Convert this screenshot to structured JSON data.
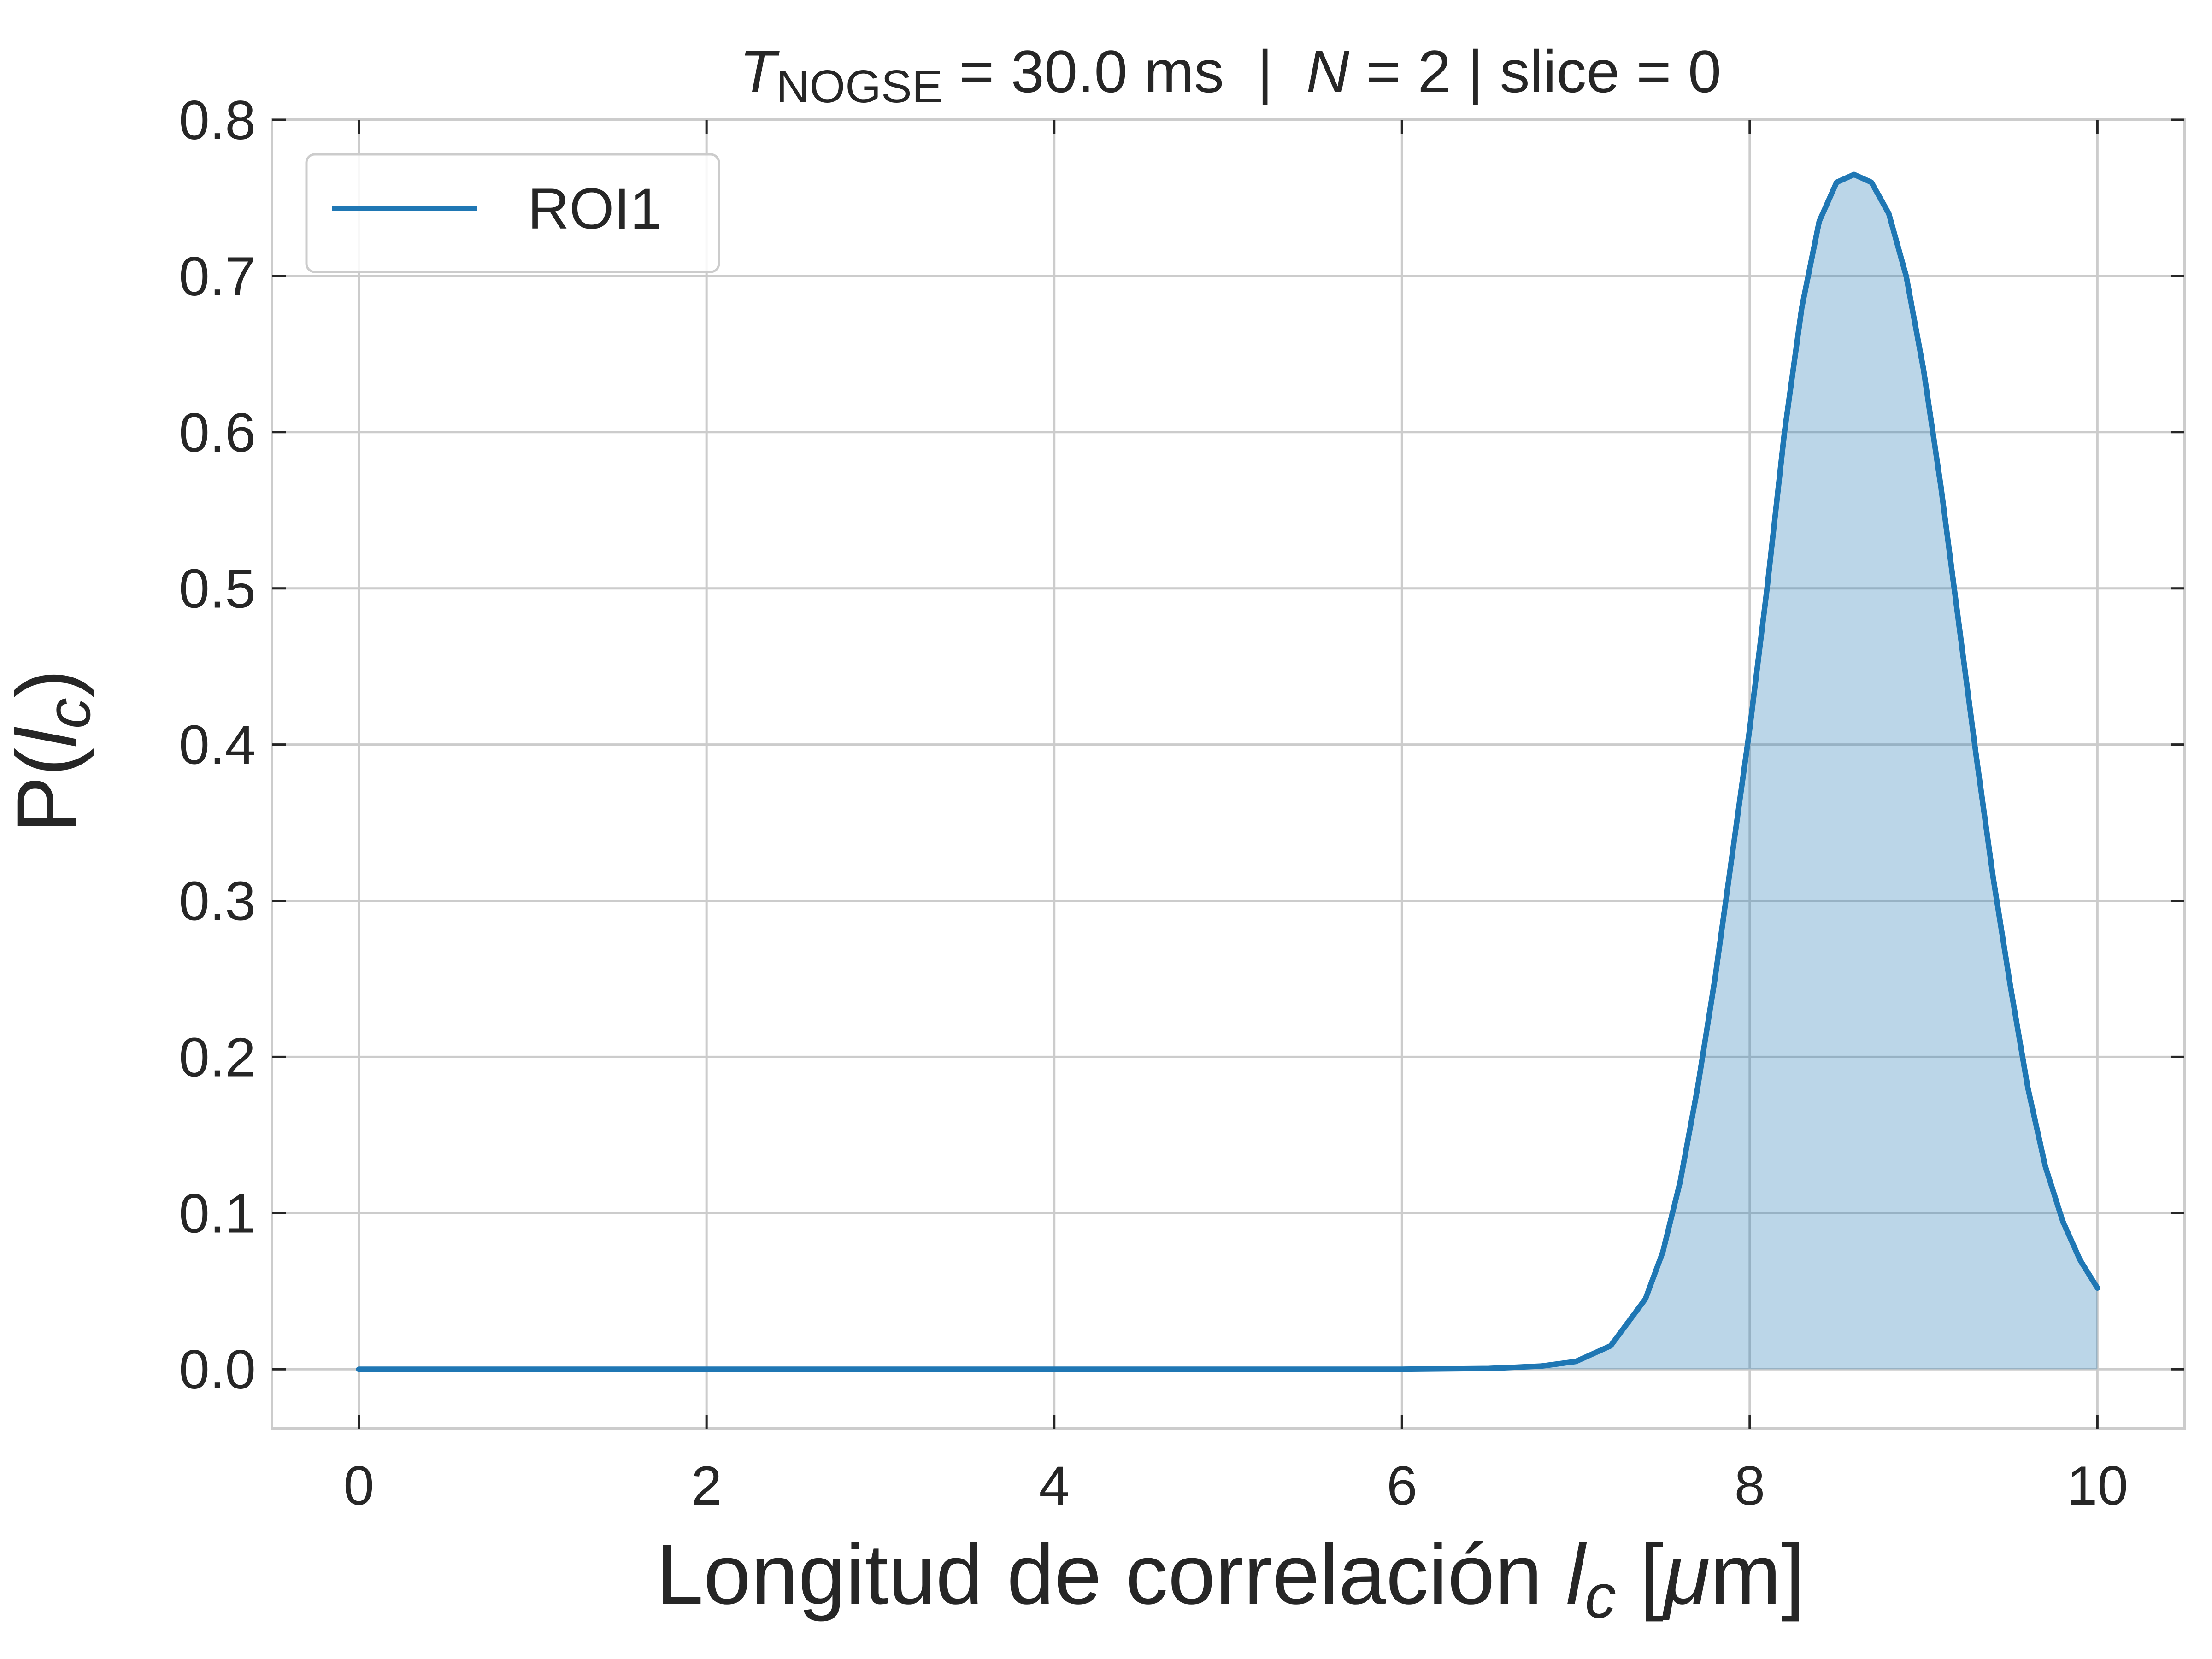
{
  "chart_data": {
    "type": "area",
    "title": {
      "t_symbol": "T",
      "t_subscript": "NOGSE",
      "t_value": " = 30.0 ms  |  ",
      "n_symbol": "N",
      "n_value": " = 2 | slice = 0"
    },
    "xlabel": {
      "text": "Longitud de correlación ",
      "var": "l",
      "var_sub": "c",
      "unit_open": " [",
      "unit_mu": "μ",
      "unit_rest": "m]"
    },
    "ylabel": {
      "prefix": "P(",
      "var": "l",
      "var_sub": "c",
      "suffix": ")"
    },
    "xlim": [
      -0.5,
      10.5
    ],
    "ylim": [
      -0.038,
      0.8
    ],
    "xticks": [
      0,
      2,
      4,
      6,
      8,
      10
    ],
    "xtick_labels": [
      "0",
      "2",
      "4",
      "6",
      "8",
      "10"
    ],
    "yticks": [
      0.0,
      0.1,
      0.2,
      0.3,
      0.4,
      0.5,
      0.6,
      0.7,
      0.8
    ],
    "ytick_labels": [
      "0.0",
      "0.1",
      "0.2",
      "0.3",
      "0.4",
      "0.5",
      "0.6",
      "0.7",
      "0.8"
    ],
    "grid": true,
    "legend_position": "top-left",
    "series": [
      {
        "name": "ROI1",
        "color": "#1f77b4",
        "fill_color": "#1f77b4",
        "fill_opacity": 0.3,
        "x": [
          0,
          1,
          2,
          3,
          4,
          5,
          6,
          6.5,
          6.8,
          7.0,
          7.2,
          7.4,
          7.5,
          7.6,
          7.7,
          7.8,
          7.9,
          8.0,
          8.1,
          8.2,
          8.3,
          8.4,
          8.5,
          8.6,
          8.7,
          8.8,
          8.9,
          9.0,
          9.1,
          9.2,
          9.3,
          9.4,
          9.5,
          9.6,
          9.7,
          9.8,
          9.9,
          10.0
        ],
        "y": [
          0,
          0,
          0,
          0,
          0,
          0,
          0,
          0.0005,
          0.002,
          0.005,
          0.015,
          0.045,
          0.075,
          0.12,
          0.18,
          0.25,
          0.33,
          0.41,
          0.5,
          0.6,
          0.68,
          0.735,
          0.76,
          0.765,
          0.76,
          0.74,
          0.7,
          0.64,
          0.565,
          0.48,
          0.395,
          0.315,
          0.245,
          0.18,
          0.13,
          0.095,
          0.07,
          0.052
        ]
      }
    ]
  }
}
